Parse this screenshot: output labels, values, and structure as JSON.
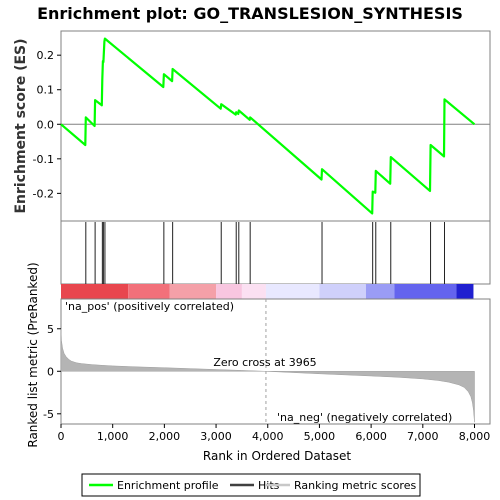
{
  "chart_data": {
    "type": "line",
    "title": "Enrichment plot: GO_TRANSLESION_SYNTHESIS",
    "panels": {
      "es": {
        "ylabel": "Enrichment score (ES)",
        "ylim": [
          -0.28,
          0.27
        ],
        "yticks": [
          -0.2,
          -0.1,
          0.0,
          0.1,
          0.2
        ],
        "ytick_labels": [
          "-0.2",
          "-0.1",
          "0.0",
          "0.1",
          "0.2"
        ],
        "color": "#00ff00"
      },
      "ranked": {
        "ylabel": "Ranked list metric (PreRanked)",
        "xlabel": "Rank in Ordered Dataset",
        "ylim": [
          -6.2,
          8.5
        ],
        "yticks": [
          -5,
          0,
          5
        ],
        "ytick_labels": [
          "-5",
          "0",
          "5"
        ],
        "pos_label": "'na_pos' (positively correlated)",
        "neg_label": "'na_neg' (negatively correlated)",
        "zero_cross_label": "Zero cross at 3965",
        "zero_cross": 3965,
        "pos_color": "#ff0000",
        "neg_color": "#0000ff"
      }
    },
    "xlim": [
      0,
      8300
    ],
    "xticks": [
      0,
      1000,
      2000,
      3000,
      4000,
      5000,
      6000,
      7000,
      8000
    ],
    "xtick_labels": [
      "0",
      "1,000",
      "2,000",
      "3,000",
      "4,000",
      "5,000",
      "6,000",
      "7,000",
      "8,000"
    ],
    "n_genes": 8000,
    "hits": [
      480,
      660,
      800,
      820,
      850,
      1990,
      2160,
      3100,
      3390,
      3440,
      3660,
      5050,
      6030,
      6090,
      6380,
      7150,
      7420
    ],
    "enrichment_profile": {
      "x": [
        0,
        470,
        480,
        650,
        660,
        790,
        800,
        810,
        820,
        840,
        850,
        1980,
        1990,
        2150,
        2160,
        3090,
        3100,
        3380,
        3390,
        3430,
        3440,
        3650,
        3660,
        5040,
        5050,
        6020,
        6030,
        6080,
        6090,
        6370,
        6380,
        7140,
        7150,
        7410,
        7420,
        8000
      ],
      "y": [
        0.0,
        -0.06,
        0.02,
        -0.005,
        0.07,
        0.055,
        0.13,
        0.183,
        0.18,
        0.24,
        0.248,
        0.108,
        0.145,
        0.125,
        0.16,
        0.045,
        0.058,
        0.028,
        0.035,
        0.03,
        0.04,
        0.013,
        0.02,
        -0.16,
        -0.13,
        -0.258,
        -0.195,
        -0.198,
        -0.135,
        -0.172,
        -0.095,
        -0.193,
        -0.06,
        -0.093,
        0.072,
        0.0
      ]
    },
    "ranked_metric": {
      "x": [
        0,
        10,
        30,
        60,
        100,
        150,
        200,
        300,
        400,
        600,
        800,
        1000,
        1500,
        2000,
        2500,
        3000,
        3500,
        3965,
        4500,
        5000,
        5500,
        6000,
        6500,
        7000,
        7300,
        7500,
        7700,
        7800,
        7880,
        7930,
        7960,
        7980,
        7995,
        8000
      ],
      "y": [
        5.0,
        3.6,
        2.7,
        2.1,
        1.7,
        1.4,
        1.2,
        1.0,
        0.9,
        0.78,
        0.7,
        0.63,
        0.52,
        0.42,
        0.32,
        0.21,
        0.1,
        0.0,
        -0.15,
        -0.3,
        -0.42,
        -0.55,
        -0.7,
        -0.9,
        -1.08,
        -1.28,
        -1.6,
        -1.9,
        -2.4,
        -3.0,
        -3.7,
        -4.6,
        -5.6,
        -6.0
      ]
    },
    "legend": {
      "position": "bottom",
      "entries": [
        {
          "label": "Enrichment profile",
          "color": "#00ff00"
        },
        {
          "label": "Hits",
          "color": "#404040"
        },
        {
          "label": "Ranking metric scores",
          "color": "#c8c8c8"
        }
      ]
    },
    "color_bar_segments": [
      {
        "x0": 0,
        "x1": 1300,
        "color": "#e8464e"
      },
      {
        "x0": 1300,
        "x1": 2100,
        "color": "#f2707a"
      },
      {
        "x0": 2100,
        "x1": 3000,
        "color": "#f4a0a8"
      },
      {
        "x0": 3000,
        "x1": 3500,
        "color": "#f8c6e0"
      },
      {
        "x0": 3500,
        "x1": 3965,
        "color": "#fbe0f2"
      },
      {
        "x0": 3965,
        "x1": 5000,
        "color": "#e8e8ff"
      },
      {
        "x0": 5000,
        "x1": 5900,
        "color": "#cfd0fb"
      },
      {
        "x0": 5900,
        "x1": 6450,
        "color": "#9a9cf5"
      },
      {
        "x0": 6450,
        "x1": 7650,
        "color": "#6464ee"
      },
      {
        "x0": 7650,
        "x1": 7980,
        "color": "#2020d0"
      }
    ]
  }
}
